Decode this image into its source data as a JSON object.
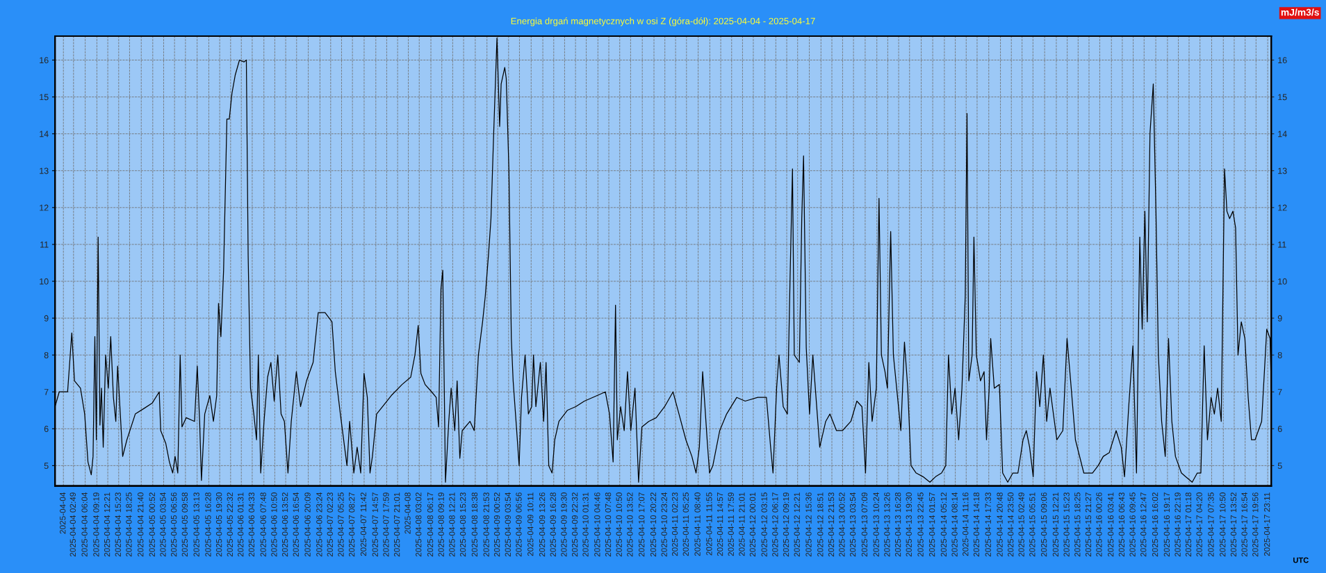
{
  "chart_data": {
    "type": "line",
    "title": "Energia drgań magnetycznych w osi Z (góra-dół): 2025-04-04 - 2025-04-17",
    "annotations": [
      "mJ/m3/s",
      "UTC"
    ],
    "grid": true,
    "legend": false,
    "marker": "none",
    "line_style": "solid",
    "xlim": [
      "2025-04-03T21:40",
      "2025-04-18T00:10"
    ],
    "ylim": [
      4.45,
      16.65
    ],
    "yticks": [
      5,
      6,
      7,
      8,
      9,
      10,
      11,
      12,
      13,
      14,
      15,
      16
    ],
    "y2lim": [
      4.45,
      16.65
    ],
    "y2ticks": [
      5,
      6,
      7,
      8,
      9,
      10,
      11,
      12,
      13,
      14,
      15,
      16
    ],
    "xticks": [
      {
        "value": "2025-04-04T00:00",
        "label": "2025-04-04"
      },
      {
        "value": "2025-04-04T02:49",
        "label": "2025-04-04 02:49"
      },
      {
        "value": "2025-04-04T06:04",
        "label": "2025-04-04 06:04"
      },
      {
        "value": "2025-04-04T09:19",
        "label": "2025-04-04 09:19"
      },
      {
        "value": "2025-04-04T12:21",
        "label": "2025-04-04 12:21"
      },
      {
        "value": "2025-04-04T15:23",
        "label": "2025-04-04 15:23"
      },
      {
        "value": "2025-04-04T18:25",
        "label": "2025-04-04 18:25"
      },
      {
        "value": "2025-04-04T21:40",
        "label": "2025-04-04 21:40"
      },
      {
        "value": "2025-04-05T00:52",
        "label": "2025-04-05 00:52"
      },
      {
        "value": "2025-04-05T03:54",
        "label": "2025-04-05 03:54"
      },
      {
        "value": "2025-04-05T06:56",
        "label": "2025-04-05 06:56"
      },
      {
        "value": "2025-04-05T09:58",
        "label": "2025-04-05 09:58"
      },
      {
        "value": "2025-04-05T13:13",
        "label": "2025-04-05 13:13"
      },
      {
        "value": "2025-04-05T16:28",
        "label": "2025-04-05 16:28"
      },
      {
        "value": "2025-04-05T19:30",
        "label": "2025-04-05 19:30"
      },
      {
        "value": "2025-04-05T22:32",
        "label": "2025-04-05 22:32"
      },
      {
        "value": "2025-04-06T01:31",
        "label": "2025-04-06 01:31"
      },
      {
        "value": "2025-04-06T04:33",
        "label": "2025-04-06 04:33"
      },
      {
        "value": "2025-04-06T07:48",
        "label": "2025-04-06 07:48"
      },
      {
        "value": "2025-04-06T10:50",
        "label": "2025-04-06 10:50"
      },
      {
        "value": "2025-04-06T13:52",
        "label": "2025-04-06 13:52"
      },
      {
        "value": "2025-04-06T16:54",
        "label": "2025-04-06 16:54"
      },
      {
        "value": "2025-04-06T20:09",
        "label": "2025-04-06 20:09"
      },
      {
        "value": "2025-04-06T23:24",
        "label": "2025-04-06 23:24"
      },
      {
        "value": "2025-04-07T02:23",
        "label": "2025-04-07 02:23"
      },
      {
        "value": "2025-04-07T05:25",
        "label": "2025-04-07 05:25"
      },
      {
        "value": "2025-04-07T08:27",
        "label": "2025-04-07 08:27"
      },
      {
        "value": "2025-04-07T11:42",
        "label": "2025-04-07 11:42"
      },
      {
        "value": "2025-04-07T14:57",
        "label": "2025-04-07 14:57"
      },
      {
        "value": "2025-04-07T17:59",
        "label": "2025-04-07 17:59"
      },
      {
        "value": "2025-04-07T21:01",
        "label": "2025-04-07 21:01"
      },
      {
        "value": "2025-04-08T00:00",
        "label": "2025-04-08"
      },
      {
        "value": "2025-04-08T03:02",
        "label": "2025-04-08 03:02"
      },
      {
        "value": "2025-04-08T06:17",
        "label": "2025-04-08 06:17"
      },
      {
        "value": "2025-04-08T09:19",
        "label": "2025-04-08 09:19"
      },
      {
        "value": "2025-04-08T12:21",
        "label": "2025-04-08 12:21"
      },
      {
        "value": "2025-04-08T15:23",
        "label": "2025-04-08 15:23"
      },
      {
        "value": "2025-04-08T18:38",
        "label": "2025-04-08 18:38"
      },
      {
        "value": "2025-04-08T21:53",
        "label": "2025-04-08 21:53"
      },
      {
        "value": "2025-04-09T00:52",
        "label": "2025-04-09 00:52"
      },
      {
        "value": "2025-04-09T03:54",
        "label": "2025-04-09 03:54"
      },
      {
        "value": "2025-04-09T06:56",
        "label": "2025-04-09 06:56"
      },
      {
        "value": "2025-04-09T10:11",
        "label": "2025-04-09 10:11"
      },
      {
        "value": "2025-04-09T13:26",
        "label": "2025-04-09 13:26"
      },
      {
        "value": "2025-04-09T16:28",
        "label": "2025-04-09 16:28"
      },
      {
        "value": "2025-04-09T19:30",
        "label": "2025-04-09 19:30"
      },
      {
        "value": "2025-04-09T22:32",
        "label": "2025-04-09 22:32"
      },
      {
        "value": "2025-04-10T01:31",
        "label": "2025-04-10 01:31"
      },
      {
        "value": "2025-04-10T04:46",
        "label": "2025-04-10 04:46"
      },
      {
        "value": "2025-04-10T07:48",
        "label": "2025-04-10 07:48"
      },
      {
        "value": "2025-04-10T10:50",
        "label": "2025-04-10 10:50"
      },
      {
        "value": "2025-04-10T13:52",
        "label": "2025-04-10 13:52"
      },
      {
        "value": "2025-04-10T17:07",
        "label": "2025-04-10 17:07"
      },
      {
        "value": "2025-04-10T20:22",
        "label": "2025-04-10 20:22"
      },
      {
        "value": "2025-04-10T23:24",
        "label": "2025-04-10 23:24"
      },
      {
        "value": "2025-04-11T02:23",
        "label": "2025-04-11 02:23"
      },
      {
        "value": "2025-04-11T05:25",
        "label": "2025-04-11 05:25"
      },
      {
        "value": "2025-04-11T08:40",
        "label": "2025-04-11 08:40"
      },
      {
        "value": "2025-04-11T11:55",
        "label": "2025-04-11 11:55"
      },
      {
        "value": "2025-04-11T14:57",
        "label": "2025-04-11 14:57"
      },
      {
        "value": "2025-04-11T17:59",
        "label": "2025-04-11 17:59"
      },
      {
        "value": "2025-04-11T21:01",
        "label": "2025-04-11 21:01"
      },
      {
        "value": "2025-04-12T00:01",
        "label": "2025-04-12 00:01"
      },
      {
        "value": "2025-04-12T03:15",
        "label": "2025-04-12 03:15"
      },
      {
        "value": "2025-04-12T06:17",
        "label": "2025-04-12 06:17"
      },
      {
        "value": "2025-04-12T09:19",
        "label": "2025-04-12 09:19"
      },
      {
        "value": "2025-04-12T12:21",
        "label": "2025-04-12 12:21"
      },
      {
        "value": "2025-04-12T15:36",
        "label": "2025-04-12 15:36"
      },
      {
        "value": "2025-04-12T18:51",
        "label": "2025-04-12 18:51"
      },
      {
        "value": "2025-04-12T21:53",
        "label": "2025-04-12 21:53"
      },
      {
        "value": "2025-04-13T00:52",
        "label": "2025-04-13 00:52"
      },
      {
        "value": "2025-04-13T03:54",
        "label": "2025-04-13 03:54"
      },
      {
        "value": "2025-04-13T07:09",
        "label": "2025-04-13 07:09"
      },
      {
        "value": "2025-04-13T10:24",
        "label": "2025-04-13 10:24"
      },
      {
        "value": "2025-04-13T13:26",
        "label": "2025-04-13 13:26"
      },
      {
        "value": "2025-04-13T16:28",
        "label": "2025-04-13 16:28"
      },
      {
        "value": "2025-04-13T19:30",
        "label": "2025-04-13 19:30"
      },
      {
        "value": "2025-04-13T22:45",
        "label": "2025-04-13 22:45"
      },
      {
        "value": "2025-04-14T01:57",
        "label": "2025-04-14 01:57"
      },
      {
        "value": "2025-04-14T05:12",
        "label": "2025-04-14 05:12"
      },
      {
        "value": "2025-04-14T08:14",
        "label": "2025-04-14 08:14"
      },
      {
        "value": "2025-04-14T11:16",
        "label": "2025-04-14 11:16"
      },
      {
        "value": "2025-04-14T14:18",
        "label": "2025-04-14 14:18"
      },
      {
        "value": "2025-04-14T17:33",
        "label": "2025-04-14 17:33"
      },
      {
        "value": "2025-04-14T20:48",
        "label": "2025-04-14 20:48"
      },
      {
        "value": "2025-04-14T23:50",
        "label": "2025-04-14 23:50"
      },
      {
        "value": "2025-04-15T02:49",
        "label": "2025-04-15 02:49"
      },
      {
        "value": "2025-04-15T05:51",
        "label": "2025-04-15 05:51"
      },
      {
        "value": "2025-04-15T09:06",
        "label": "2025-04-15 09:06"
      },
      {
        "value": "2025-04-15T12:21",
        "label": "2025-04-15 12:21"
      },
      {
        "value": "2025-04-15T15:23",
        "label": "2025-04-15 15:23"
      },
      {
        "value": "2025-04-15T18:25",
        "label": "2025-04-15 18:25"
      },
      {
        "value": "2025-04-15T21:27",
        "label": "2025-04-15 21:27"
      },
      {
        "value": "2025-04-16T00:26",
        "label": "2025-04-16 00:26"
      },
      {
        "value": "2025-04-16T03:41",
        "label": "2025-04-16 03:41"
      },
      {
        "value": "2025-04-16T06:43",
        "label": "2025-04-16 06:43"
      },
      {
        "value": "2025-04-16T09:45",
        "label": "2025-04-16 09:45"
      },
      {
        "value": "2025-04-16T12:47",
        "label": "2025-04-16 12:47"
      },
      {
        "value": "2025-04-16T16:02",
        "label": "2025-04-16 16:02"
      },
      {
        "value": "2025-04-16T19:17",
        "label": "2025-04-16 19:17"
      },
      {
        "value": "2025-04-16T22:19",
        "label": "2025-04-16 22:19"
      },
      {
        "value": "2025-04-17T01:18",
        "label": "2025-04-17 01:18"
      },
      {
        "value": "2025-04-17T04:20",
        "label": "2025-04-17 04:20"
      },
      {
        "value": "2025-04-17T07:35",
        "label": "2025-04-17 07:35"
      },
      {
        "value": "2025-04-17T10:50",
        "label": "2025-04-17 10:50"
      },
      {
        "value": "2025-04-17T13:52",
        "label": "2025-04-17 13:52"
      },
      {
        "value": "2025-04-17T16:54",
        "label": "2025-04-17 16:54"
      },
      {
        "value": "2025-04-17T19:56",
        "label": "2025-04-17 19:56"
      },
      {
        "value": "2025-04-17T23:11",
        "label": "2025-04-17 23:11"
      }
    ],
    "series": [
      {
        "color": "#000000",
        "x": [
          "2025-04-03T21:40",
          "2025-04-03T22:50",
          "2025-04-04T01:10",
          "2025-04-04T02:20",
          "2025-04-04T03:05",
          "2025-04-04T04:45",
          "2025-04-04T05:55",
          "2025-04-04T06:50",
          "2025-04-04T07:45",
          "2025-04-04T08:15",
          "2025-04-04T08:45",
          "2025-04-04T09:10",
          "2025-04-04T09:40",
          "2025-04-04T10:10",
          "2025-04-04T10:35",
          "2025-04-04T11:05",
          "2025-04-04T11:45",
          "2025-04-04T12:30",
          "2025-04-04T13:10",
          "2025-04-04T13:55",
          "2025-04-04T14:35",
          "2025-04-04T15:05",
          "2025-04-04T15:35",
          "2025-04-04T16:30",
          "2025-04-04T17:40",
          "2025-04-04T20:00",
          "2025-04-04T22:25",
          "2025-04-05T00:45",
          "2025-04-05T02:40",
          "2025-04-05T03:05",
          "2025-04-05T04:30",
          "2025-04-05T05:30",
          "2025-04-05T06:25",
          "2025-04-05T07:05",
          "2025-04-05T07:50",
          "2025-04-05T08:30",
          "2025-04-05T09:00",
          "2025-04-05T10:10",
          "2025-04-05T12:30",
          "2025-04-05T13:15",
          "2025-04-05T13:55",
          "2025-04-05T14:25",
          "2025-04-05T15:20",
          "2025-04-05T16:45",
          "2025-04-05T17:45",
          "2025-04-05T18:40",
          "2025-04-05T19:10",
          "2025-04-05T19:50",
          "2025-04-05T20:35",
          "2025-04-05T21:30",
          "2025-04-05T22:10",
          "2025-04-05T22:55",
          "2025-04-05T23:50",
          "2025-04-06T01:00",
          "2025-04-06T02:15",
          "2025-04-06T02:55",
          "2025-04-06T03:25",
          "2025-04-06T04:05",
          "2025-04-06T05:00",
          "2025-04-06T05:45",
          "2025-04-06T06:15",
          "2025-04-06T06:55",
          "2025-04-06T07:50",
          "2025-04-06T08:50",
          "2025-04-06T09:45",
          "2025-04-06T10:40",
          "2025-04-06T11:40",
          "2025-04-06T12:35",
          "2025-04-06T13:30",
          "2025-04-06T14:30",
          "2025-04-06T15:25",
          "2025-04-06T16:50",
          "2025-04-06T18:00",
          "2025-04-06T19:40",
          "2025-04-06T21:30",
          "2025-04-06T22:55",
          "2025-04-07T00:50",
          "2025-04-07T02:45",
          "2025-04-07T03:40",
          "2025-04-07T05:05",
          "2025-04-07T06:55",
          "2025-04-07T07:40",
          "2025-04-07T08:50",
          "2025-04-07T09:45",
          "2025-04-07T10:45",
          "2025-04-07T11:40",
          "2025-04-07T12:35",
          "2025-04-07T13:20",
          "2025-04-07T14:00",
          "2025-04-07T15:10",
          "2025-04-07T16:50",
          "2025-04-07T19:15",
          "2025-04-07T22:15",
          "2025-04-08T00:40",
          "2025-04-08T01:50",
          "2025-04-08T02:45",
          "2025-04-08T03:30",
          "2025-04-08T04:40",
          "2025-04-08T06:30",
          "2025-04-08T07:45",
          "2025-04-08T08:25",
          "2025-04-08T09:05",
          "2025-04-08T09:35",
          "2025-04-08T10:20",
          "2025-04-08T11:15",
          "2025-04-08T11:55",
          "2025-04-08T12:55",
          "2025-04-08T13:35",
          "2025-04-08T14:20",
          "2025-04-08T15:00",
          "2025-04-08T17:10",
          "2025-04-08T18:20",
          "2025-04-08T19:30",
          "2025-04-08T20:40",
          "2025-04-08T21:25",
          "2025-04-08T22:20",
          "2025-04-08T23:00",
          "2025-04-08T23:45",
          "2025-04-09T00:40",
          "2025-04-09T01:25",
          "2025-04-09T01:50",
          "2025-04-09T02:50",
          "2025-04-09T03:15",
          "2025-04-09T04:00",
          "2025-04-09T04:40",
          "2025-04-09T05:10",
          "2025-04-09T06:05",
          "2025-04-09T06:50",
          "2025-04-09T07:30",
          "2025-04-09T08:30",
          "2025-04-09T09:25",
          "2025-04-09T10:20",
          "2025-04-09T10:50",
          "2025-04-09T11:30",
          "2025-04-09T12:45",
          "2025-04-09T13:40",
          "2025-04-09T14:20",
          "2025-04-09T15:05",
          "2025-04-09T16:00",
          "2025-04-09T16:45",
          "2025-04-09T17:55",
          "2025-04-09T20:15",
          "2025-04-09T22:35",
          "2025-04-10T01:00",
          "2025-04-10T03:20",
          "2025-04-10T06:50",
          "2025-04-10T08:00",
          "2025-04-10T09:00",
          "2025-04-10T09:40",
          "2025-04-10T10:10",
          "2025-04-10T11:05",
          "2025-04-10T12:05",
          "2025-04-10T13:00",
          "2025-04-10T13:55",
          "2025-04-10T15:05",
          "2025-04-10T16:05",
          "2025-04-10T17:00",
          "2025-04-10T18:55",
          "2025-04-10T21:00",
          "2025-04-10T23:20",
          "2025-04-11T01:40",
          "2025-04-11T02:55",
          "2025-04-11T05:15",
          "2025-04-11T06:55",
          "2025-04-11T08:05",
          "2025-04-11T09:00",
          "2025-04-11T09:55",
          "2025-04-11T11:10",
          "2025-04-11T11:50",
          "2025-04-11T12:45",
          "2025-04-11T14:40",
          "2025-04-11T16:35",
          "2025-04-11T19:25",
          "2025-04-11T21:45",
          "2025-04-12T01:15",
          "2025-04-12T03:40",
          "2025-04-12T04:50",
          "2025-04-12T05:30",
          "2025-04-12T06:30",
          "2025-04-12T07:10",
          "2025-04-12T08:20",
          "2025-04-12T09:30",
          "2025-04-12T10:15",
          "2025-04-12T10:55",
          "2025-04-12T11:25",
          "2025-04-12T12:50",
          "2025-04-12T13:30",
          "2025-04-12T14:00",
          "2025-04-12T14:45",
          "2025-04-12T15:40",
          "2025-04-12T16:35",
          "2025-04-12T17:20",
          "2025-04-12T18:30",
          "2025-04-12T20:10",
          "2025-04-12T21:20",
          "2025-04-12T23:10",
          "2025-04-13T00:50",
          "2025-04-13T03:10",
          "2025-04-13T04:50",
          "2025-04-13T06:15",
          "2025-04-13T07:15",
          "2025-04-13T08:10",
          "2025-04-13T09:05",
          "2025-04-13T10:15",
          "2025-04-13T11:00",
          "2025-04-13T11:40",
          "2025-04-13T12:40",
          "2025-04-13T13:20",
          "2025-04-13T14:15",
          "2025-04-13T15:00",
          "2025-04-13T16:10",
          "2025-04-13T17:05",
          "2025-04-13T18:05",
          "2025-04-13T19:00",
          "2025-04-13T19:55",
          "2025-04-13T21:20",
          "2025-04-13T23:15",
          "2025-04-14T01:10",
          "2025-04-14T02:45",
          "2025-04-14T04:25",
          "2025-04-14T05:35",
          "2025-04-14T06:20",
          "2025-04-14T07:15",
          "2025-04-14T08:10",
          "2025-04-14T09:10",
          "2025-04-14T10:05",
          "2025-04-14T11:00",
          "2025-04-14T11:30",
          "2025-04-14T12:00",
          "2025-04-14T12:55",
          "2025-04-14T13:25",
          "2025-04-14T14:05",
          "2025-04-14T15:15",
          "2025-04-14T16:15",
          "2025-04-14T16:55",
          "2025-04-14T17:40",
          "2025-04-14T18:05",
          "2025-04-14T19:05",
          "2025-04-14T20:30",
          "2025-04-14T21:25",
          "2025-04-14T22:50",
          "2025-04-15T00:15",
          "2025-04-15T01:40",
          "2025-04-15T03:05",
          "2025-04-15T04:00",
          "2025-04-15T04:55",
          "2025-04-15T05:55",
          "2025-04-15T06:50",
          "2025-04-15T07:45",
          "2025-04-15T08:45",
          "2025-04-15T09:40",
          "2025-04-15T10:35",
          "2025-04-15T12:30",
          "2025-04-15T14:10",
          "2025-04-15T15:20",
          "2025-04-15T16:30",
          "2025-04-15T17:40",
          "2025-04-15T20:00",
          "2025-04-15T22:25",
          "2025-04-16T00:00",
          "2025-04-16T01:25",
          "2025-04-16T03:05",
          "2025-04-16T05:00",
          "2025-04-16T06:25",
          "2025-04-16T07:20",
          "2025-04-16T08:30",
          "2025-04-16T09:40",
          "2025-04-16T10:40",
          "2025-04-16T11:35",
          "2025-04-16T12:15",
          "2025-04-16T13:00",
          "2025-04-16T13:40",
          "2025-04-16T14:25",
          "2025-04-16T15:20",
          "2025-04-16T16:05",
          "2025-04-16T16:45",
          "2025-04-16T17:40",
          "2025-04-16T18:40",
          "2025-04-16T19:35",
          "2025-04-16T20:30",
          "2025-04-16T21:30",
          "2025-04-16T23:10",
          "2025-04-17T00:20",
          "2025-04-17T02:10",
          "2025-04-17T03:35",
          "2025-04-17T04:35",
          "2025-04-17T05:30",
          "2025-04-17T06:25",
          "2025-04-17T07:25",
          "2025-04-17T08:20",
          "2025-04-17T09:15",
          "2025-04-17T10:15",
          "2025-04-17T11:10",
          "2025-04-17T11:50",
          "2025-04-17T12:35",
          "2025-04-17T13:30",
          "2025-04-17T14:15",
          "2025-04-17T14:55",
          "2025-04-17T15:50",
          "2025-04-17T16:50",
          "2025-04-17T17:45",
          "2025-04-17T18:40",
          "2025-04-17T19:40",
          "2025-04-17T21:30",
          "2025-04-17T22:55",
          "2025-04-17T23:50",
          "2025-04-18T00:10"
        ],
        "values": [
          6.6,
          7.0,
          7.0,
          8.6,
          7.3,
          7.1,
          6.4,
          5.1,
          4.75,
          5.25,
          8.5,
          5.7,
          11.2,
          6.1,
          7.1,
          5.5,
          8.0,
          7.1,
          8.5,
          6.85,
          6.2,
          7.7,
          null,
          5.25,
          5.7,
          6.4,
          6.55,
          6.7,
          7.0,
          5.95,
          5.6,
          5.1,
          4.8,
          5.25,
          4.8,
          8.0,
          6.05,
          6.3,
          6.2,
          7.7,
          6.2,
          4.6,
          6.4,
          6.9,
          6.2,
          6.9,
          9.4,
          8.5,
          10.3,
          14.4,
          14.4,
          15.1,
          15.6,
          16.0,
          15.95,
          16.0,
          10.7,
          7.1,
          6.4,
          5.7,
          8.0,
          4.8,
          6.2,
          7.4,
          7.8,
          6.75,
          8.0,
          6.4,
          6.2,
          4.8,
          6.2,
          7.55,
          6.6,
          7.3,
          7.8,
          9.15,
          9.15,
          8.9,
          7.55,
          6.4,
          5.0,
          6.2,
          4.8,
          5.5,
          4.8,
          7.5,
          6.85,
          4.8,
          5.25,
          6.4,
          6.6,
          6.9,
          7.2,
          7.4,
          8.0,
          8.8,
          7.5,
          7.2,
          7.0,
          6.85,
          6.05,
          9.8,
          10.3,
          4.55,
          6.2,
          7.1,
          5.95,
          7.3,
          5.2,
          5.95,
          6.2,
          5.95,
          8.0,
          8.9,
          9.6,
          10.75,
          11.7,
          14.0,
          16.6,
          14.2,
          15.35,
          15.8,
          15.5,
          13.0,
          8.45,
          7.3,
          6.05,
          5.0,
          6.85,
          8.0,
          6.4,
          6.6,
          8.0,
          6.6,
          7.8,
          6.2,
          7.8,
          5.0,
          4.8,
          5.7,
          6.2,
          6.5,
          6.6,
          6.75,
          6.85,
          7.0,
          6.4,
          5.1,
          9.35,
          5.7,
          6.6,
          5.95,
          7.55,
          5.95,
          7.1,
          4.55,
          6.05,
          6.2,
          6.3,
          6.6,
          7.0,
          6.55,
          5.7,
          5.25,
          4.8,
          5.5,
          7.55,
          5.7,
          4.8,
          5.0,
          5.95,
          6.4,
          6.85,
          6.75,
          6.85,
          6.85,
          5.5,
          4.8,
          7.1,
          8.0,
          6.6,
          6.4,
          10.1,
          13.05,
          8.0,
          7.8,
          11.7,
          13.4,
          8.2,
          6.4,
          8.0,
          null,
          5.5,
          6.2,
          6.4,
          5.95,
          5.95,
          6.2,
          6.75,
          6.6,
          4.8,
          7.8,
          6.2,
          7.1,
          12.25,
          8.0,
          7.55,
          7.1,
          11.35,
          8.0,
          6.85,
          5.95,
          8.35,
          7.1,
          5.0,
          4.8,
          4.7,
          4.55,
          4.7,
          4.8,
          5.0,
          8.0,
          6.4,
          7.1,
          5.7,
          7.1,
          9.6,
          14.55,
          7.3,
          8.0,
          11.2,
          8.0,
          7.3,
          7.55,
          5.7,
          7.1,
          8.45,
          7.1,
          7.2,
          4.8,
          4.55,
          4.8,
          4.8,
          5.7,
          5.95,
          5.5,
          4.7,
          7.55,
          6.6,
          8.0,
          6.2,
          7.1,
          5.7,
          5.95,
          8.45,
          7.1,
          5.7,
          4.8,
          4.8,
          5.0,
          5.25,
          5.35,
          5.95,
          5.5,
          4.7,
          6.6,
          8.25,
          4.8,
          11.2,
          8.7,
          11.9,
          8.9,
          14.0,
          15.35,
          11.9,
          8.0,
          6.2,
          5.25,
          8.45,
          6.2,
          5.25,
          4.8,
          4.7,
          4.55,
          4.8,
          4.8,
          8.25,
          5.7,
          6.85,
          6.4,
          7.1,
          6.2,
          13.05,
          11.9,
          11.7,
          11.9,
          11.45,
          8.0,
          8.9,
          8.45,
          6.85,
          5.7,
          5.7,
          6.2,
          8.7,
          8.45,
          7.1
        ]
      }
    ]
  }
}
